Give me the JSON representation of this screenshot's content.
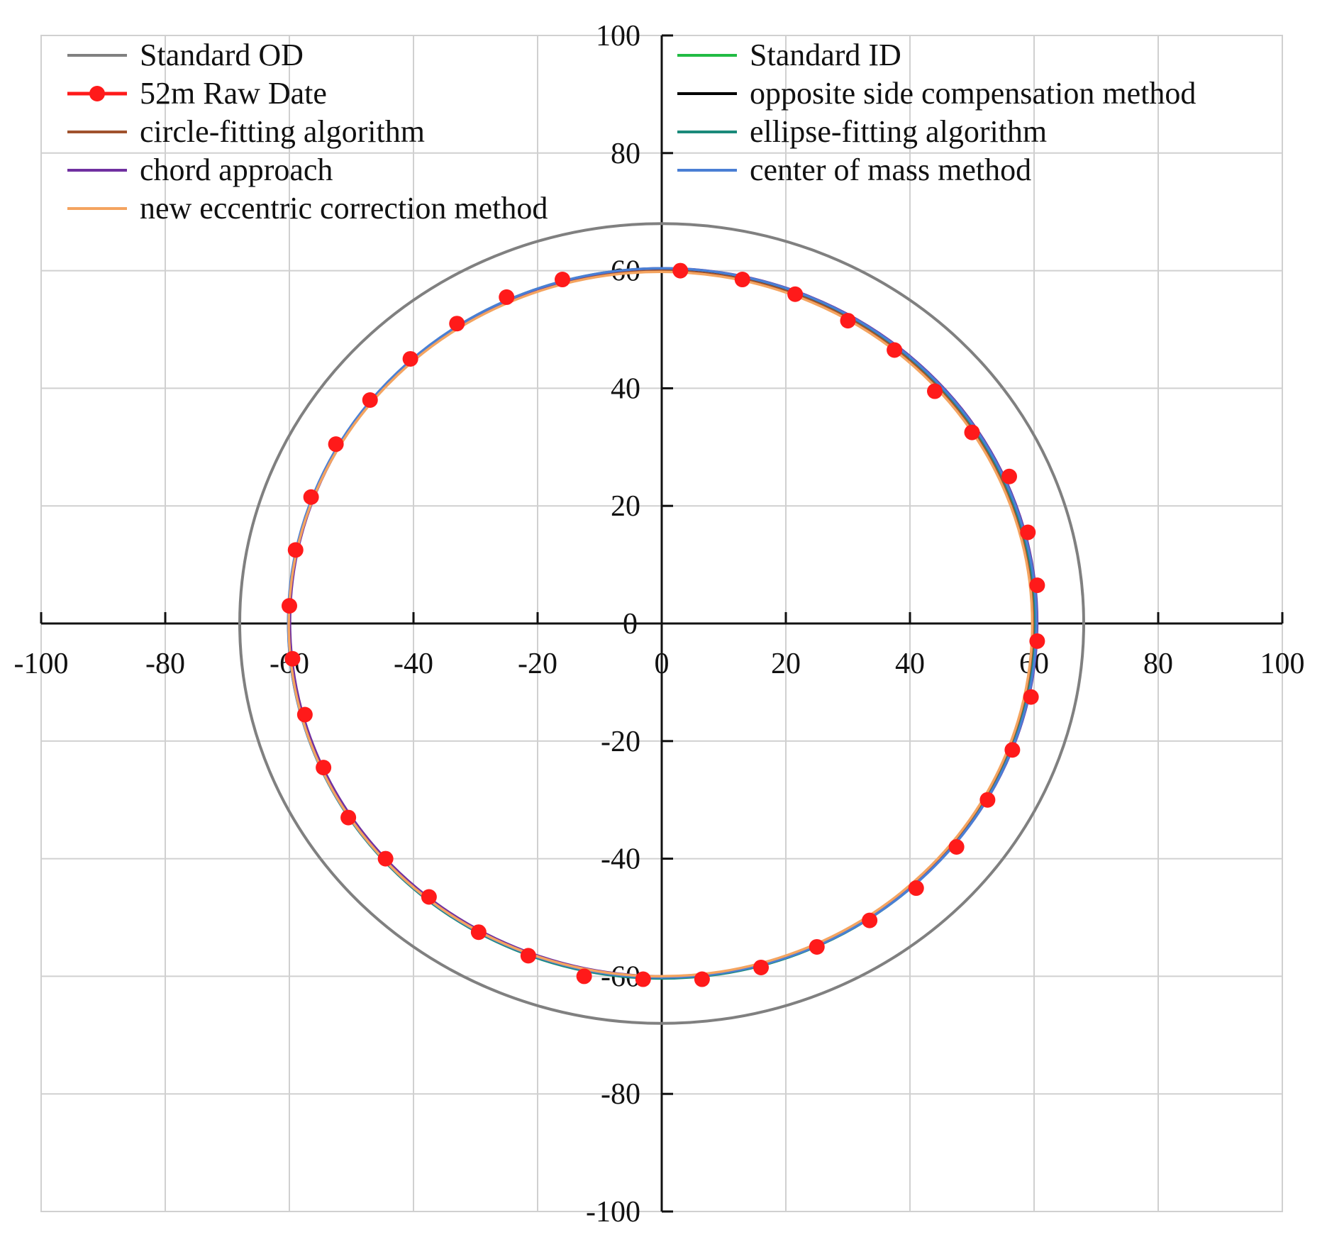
{
  "chart_data": {
    "type": "line",
    "title": "",
    "xlabel": "",
    "ylabel": "",
    "xlim": [
      -100,
      100
    ],
    "ylim": [
      -100,
      100
    ],
    "x_ticks": [
      -100,
      -80,
      -60,
      -40,
      -20,
      0,
      20,
      40,
      60,
      80,
      100
    ],
    "y_ticks": [
      -100,
      -80,
      -60,
      -40,
      -20,
      0,
      20,
      40,
      60,
      80,
      100
    ],
    "grid": true,
    "legend_position": "top",
    "series": [
      {
        "name": "Standard OD",
        "color": "#808080",
        "shape": "circle",
        "radius": 68
      },
      {
        "name": "52m Raw Date",
        "color": "#ff1a1a",
        "marker": "circle",
        "points": [
          [
            3,
            60
          ],
          [
            13,
            58.5
          ],
          [
            21.5,
            56
          ],
          [
            30,
            51.5
          ],
          [
            37.5,
            46.5
          ],
          [
            44,
            39.5
          ],
          [
            50,
            32.5
          ],
          [
            56,
            25
          ],
          [
            59,
            15.5
          ],
          [
            60.5,
            6.5
          ],
          [
            60.5,
            -3
          ],
          [
            59.5,
            -12.5
          ],
          [
            56.5,
            -21.5
          ],
          [
            52.5,
            -30
          ],
          [
            47.5,
            -38
          ],
          [
            41,
            -45
          ],
          [
            33.5,
            -50.5
          ],
          [
            25,
            -55
          ],
          [
            16,
            -58.5
          ],
          [
            6.5,
            -60.5
          ],
          [
            -3,
            -60.5
          ],
          [
            -12.5,
            -60
          ],
          [
            -21.5,
            -56.5
          ],
          [
            -29.5,
            -52.5
          ],
          [
            -37.5,
            -46.5
          ],
          [
            -44.5,
            -40
          ],
          [
            -50.5,
            -33
          ],
          [
            -54.5,
            -24.5
          ],
          [
            -57.5,
            -15.5
          ],
          [
            -59.5,
            -6
          ],
          [
            -60,
            3
          ],
          [
            -59,
            12.5
          ],
          [
            -56.5,
            21.5
          ],
          [
            -52.5,
            30.5
          ],
          [
            -47,
            38
          ],
          [
            -40.5,
            45
          ],
          [
            -33,
            51
          ],
          [
            -25,
            55.5
          ],
          [
            -16,
            58.5
          ]
        ]
      },
      {
        "name": "circle-fitting algorithm",
        "color": "#a0522d",
        "shape": "circle",
        "cx": 0,
        "cy": 0,
        "radius": 60
      },
      {
        "name": "chord approach",
        "color": "#7030a0",
        "shape": "circle",
        "cx": 0.3,
        "cy": 0.2,
        "radius": 60.2
      },
      {
        "name": "new eccentric correction method",
        "color": "#f4a460",
        "shape": "circle",
        "cx": -0.2,
        "cy": -0.1,
        "radius": 59.9
      },
      {
        "name": "Standard ID",
        "color": "#22bb44",
        "shape": "circle",
        "cx": 0,
        "cy": 0,
        "radius": 60
      },
      {
        "name": "opposite side compensation method",
        "color": "#000000",
        "shape": "circle",
        "cx": 0.1,
        "cy": 0,
        "radius": 60.1
      },
      {
        "name": "ellipse-fitting algorithm",
        "color": "#1a8a7a",
        "shape": "ellipse",
        "cx": 0,
        "cy": 0,
        "rx": 60.2,
        "ry": 60.4
      },
      {
        "name": "center of mass method",
        "color": "#4a7fd4",
        "shape": "circle",
        "cx": 0.1,
        "cy": 0.1,
        "radius": 60.3
      }
    ]
  }
}
